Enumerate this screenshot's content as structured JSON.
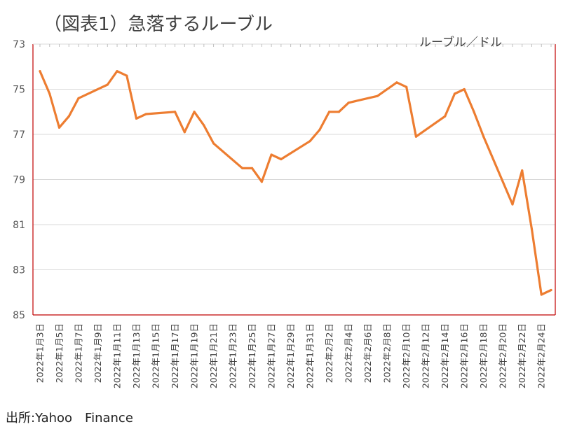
{
  "title": "（図表1）急落するルーブル",
  "source": "出所:Yahoo　Finance",
  "chart_data": {
    "type": "line",
    "title": "（図表1）急落するルーブル",
    "unit_label": "ルーブル／ドル",
    "ylim": [
      73,
      85
    ],
    "y_inverted": true,
    "y_ticks": [
      "73",
      "75",
      "77",
      "79",
      "81",
      "83",
      "85"
    ],
    "grid": true,
    "line_color": "#ED7D31",
    "axis_color": "#C00000",
    "x_tick_labels": [
      "2022年1月3日",
      "2022年1月5日",
      "2022年1月7日",
      "2022年1月9日",
      "2022年1月11日",
      "2022年1月13日",
      "2022年1月15日",
      "2022年1月17日",
      "2022年1月19日",
      "2022年1月21日",
      "2022年1月23日",
      "2022年1月25日",
      "2022年1月27日",
      "2022年1月29日",
      "2022年1月31日",
      "2022年2月2日",
      "2022年2月4日",
      "2022年2月6日",
      "2022年2月8日",
      "2022年2月10日",
      "2022年2月12日",
      "2022年2月14日",
      "2022年2月16日",
      "2022年2月18日",
      "2022年2月20日",
      "2022年2月22日",
      "2022年2月24日"
    ],
    "series": [
      {
        "values": [
          [
            "2022-01-03",
            74.2
          ],
          [
            "2022-01-04",
            75.2
          ],
          [
            "2022-01-05",
            76.7
          ],
          [
            "2022-01-06",
            76.2
          ],
          [
            "2022-01-07",
            75.4
          ],
          [
            "2022-01-10",
            74.8
          ],
          [
            "2022-01-11",
            74.2
          ],
          [
            "2022-01-12",
            74.4
          ],
          [
            "2022-01-13",
            76.3
          ],
          [
            "2022-01-14",
            76.1
          ],
          [
            "2022-01-17",
            76.0
          ],
          [
            "2022-01-18",
            76.9
          ],
          [
            "2022-01-19",
            76.0
          ],
          [
            "2022-01-20",
            76.6
          ],
          [
            "2022-01-21",
            77.4
          ],
          [
            "2022-01-24",
            78.5
          ],
          [
            "2022-01-25",
            78.5
          ],
          [
            "2022-01-26",
            79.1
          ],
          [
            "2022-01-27",
            77.9
          ],
          [
            "2022-01-28",
            78.1
          ],
          [
            "2022-01-31",
            77.3
          ],
          [
            "2022-02-01",
            76.8
          ],
          [
            "2022-02-02",
            76.0
          ],
          [
            "2022-02-03",
            76.0
          ],
          [
            "2022-02-04",
            75.6
          ],
          [
            "2022-02-07",
            75.3
          ],
          [
            "2022-02-08",
            75.0
          ],
          [
            "2022-02-09",
            74.7
          ],
          [
            "2022-02-10",
            74.9
          ],
          [
            "2022-02-11",
            77.1
          ],
          [
            "2022-02-14",
            76.2
          ],
          [
            "2022-02-15",
            75.2
          ],
          [
            "2022-02-16",
            75.0
          ],
          [
            "2022-02-17",
            76.0
          ],
          [
            "2022-02-18",
            77.1
          ],
          [
            "2022-02-21",
            80.1
          ],
          [
            "2022-02-22",
            78.6
          ],
          [
            "2022-02-23",
            81.2
          ],
          [
            "2022-02-24",
            84.1
          ],
          [
            "2022-02-25",
            83.9
          ]
        ]
      }
    ]
  }
}
